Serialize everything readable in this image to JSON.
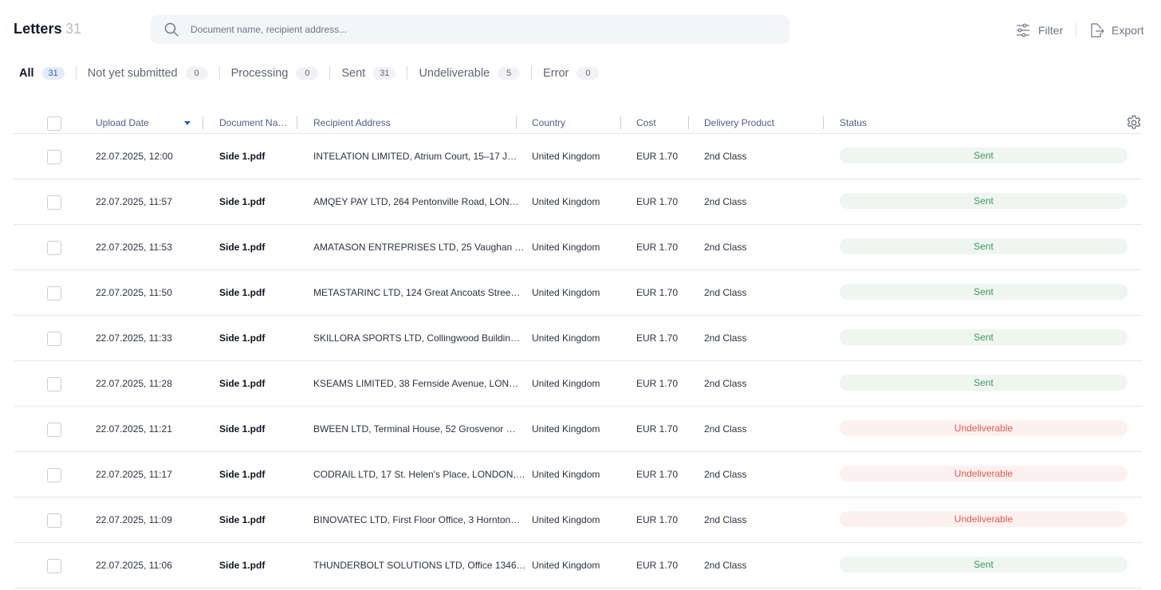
{
  "header": {
    "title": "Letters",
    "count": "31",
    "search_placeholder": "Document name, recipient address...",
    "filter_label": "Filter",
    "export_label": "Export"
  },
  "tabs": [
    {
      "label": "All",
      "count": "31",
      "active": true
    },
    {
      "label": "Not yet submitted",
      "count": "0",
      "active": false
    },
    {
      "label": "Processing",
      "count": "0",
      "active": false
    },
    {
      "label": "Sent",
      "count": "31",
      "active": false
    },
    {
      "label": "Undeliverable",
      "count": "5",
      "active": false
    },
    {
      "label": "Error",
      "count": "0",
      "active": false
    }
  ],
  "table": {
    "columns": {
      "upload_date": "Upload Date",
      "document_name": "Document Na…",
      "recipient_address": "Recipient Address",
      "country": "Country",
      "cost": "Cost",
      "delivery_product": "Delivery Product",
      "status": "Status"
    },
    "sort": {
      "column": "upload_date",
      "direction": "descending"
    },
    "rows": [
      {
        "date": "22.07.2025, 12:00",
        "doc": "Side 1.pdf",
        "address": "INTELATION LIMITED, Atrium Court, 15–17 J…",
        "country": "United Kingdom",
        "cost": "EUR 1.70",
        "product": "2nd Class",
        "status": "Sent",
        "status_type": "sent"
      },
      {
        "date": "22.07.2025, 11:57",
        "doc": "Side 1.pdf",
        "address": "AMQEY PAY LTD, 264 Pentonville Road, LON…",
        "country": "United Kingdom",
        "cost": "EUR 1.70",
        "product": "2nd Class",
        "status": "Sent",
        "status_type": "sent"
      },
      {
        "date": "22.07.2025, 11:53",
        "doc": "Side 1.pdf",
        "address": "AMATASON ENTREPRISES LTD, 25 Vaughan …",
        "country": "United Kingdom",
        "cost": "EUR 1.70",
        "product": "2nd Class",
        "status": "Sent",
        "status_type": "sent"
      },
      {
        "date": "22.07.2025, 11:50",
        "doc": "Side 1.pdf",
        "address": "METASTARINC LTD, 124 Great Ancoats Stree…",
        "country": "United Kingdom",
        "cost": "EUR 1.70",
        "product": "2nd Class",
        "status": "Sent",
        "status_type": "sent"
      },
      {
        "date": "22.07.2025, 11:33",
        "doc": "Side 1.pdf",
        "address": "SKILLORA SPORTS LTD, Collingwood Buildin…",
        "country": "United Kingdom",
        "cost": "EUR 1.70",
        "product": "2nd Class",
        "status": "Sent",
        "status_type": "sent"
      },
      {
        "date": "22.07.2025, 11:28",
        "doc": "Side 1.pdf",
        "address": "KSEAMS LIMITED, 38 Fernside Avenue, LON…",
        "country": "United Kingdom",
        "cost": "EUR 1.70",
        "product": "2nd Class",
        "status": "Sent",
        "status_type": "sent"
      },
      {
        "date": "22.07.2025, 11:21",
        "doc": "Side 1.pdf",
        "address": "BWEEN LTD, Terminal House, 52 Grosvenor …",
        "country": "United Kingdom",
        "cost": "EUR 1.70",
        "product": "2nd Class",
        "status": "Undeliverable",
        "status_type": "undeliverable"
      },
      {
        "date": "22.07.2025, 11:17",
        "doc": "Side 1.pdf",
        "address": "CODRAIL LTD, 17 St. Helen's Place, LONDON,…",
        "country": "United Kingdom",
        "cost": "EUR 1.70",
        "product": "2nd Class",
        "status": "Undeliverable",
        "status_type": "undeliverable"
      },
      {
        "date": "22.07.2025, 11:09",
        "doc": "Side 1.pdf",
        "address": "BINOVATEC LTD, First Floor Office, 3 Hornton…",
        "country": "United Kingdom",
        "cost": "EUR 1.70",
        "product": "2nd Class",
        "status": "Undeliverable",
        "status_type": "undeliverable"
      },
      {
        "date": "22.07.2025, 11:06",
        "doc": "Side 1.pdf",
        "address": "THUNDERBOLT SOLUTIONS LTD, Office 1346…",
        "country": "United Kingdom",
        "cost": "EUR 1.70",
        "product": "2nd Class",
        "status": "Sent",
        "status_type": "sent"
      }
    ]
  },
  "colors": {
    "accent": "#2f5fb3",
    "sent_text": "#3f9a5a",
    "sent_bg": "#eff5f0",
    "undeliverable_text": "#e05a4f",
    "undeliverable_bg": "#fdf1f0"
  },
  "icons": {
    "search": "search-icon",
    "filter": "sliders-icon",
    "export": "export-icon",
    "settings": "gear-icon"
  }
}
